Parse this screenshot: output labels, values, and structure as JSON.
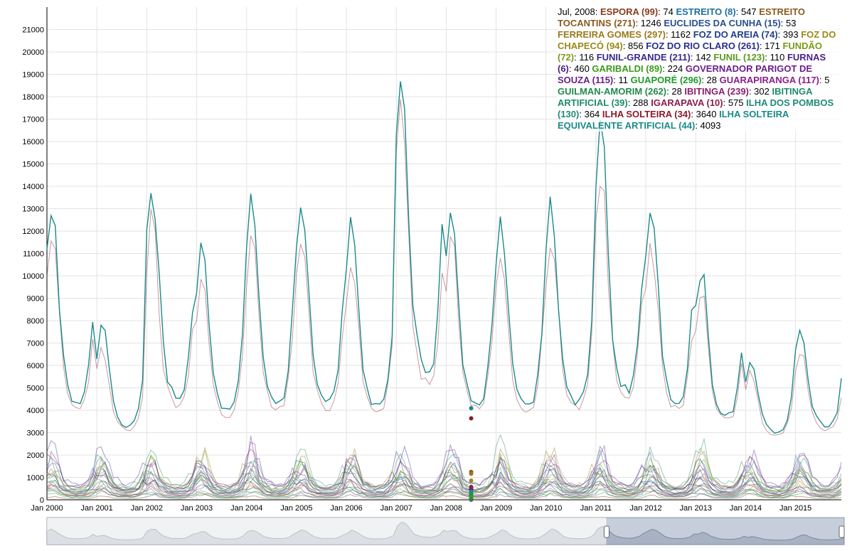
{
  "chart_data": {
    "type": "line",
    "title": "",
    "xlabel": "",
    "ylabel": "",
    "x_start": "2000-01",
    "x_end": "2015-12",
    "x_tick_labels": [
      "Jan 2000",
      "Jan 2001",
      "Jan 2002",
      "Jan 2003",
      "Jan 2004",
      "Jan 2005",
      "Jan 2006",
      "Jan 2007",
      "Jan 2008",
      "Jan 2009",
      "Jan 2010",
      "Jan 2011",
      "Jan 2012",
      "Jan 2013",
      "Jan 2014",
      "Jan 2015"
    ],
    "y_ticks": [
      0,
      1000,
      2000,
      3000,
      4000,
      5000,
      6000,
      7000,
      8000,
      9000,
      10000,
      11000,
      12000,
      13000,
      14000,
      15000,
      16000,
      17000,
      18000,
      19000,
      20000,
      21000
    ],
    "ylim": [
      0,
      22000
    ],
    "grid": true,
    "legend_position": "top-right",
    "highlight_date": "2008-07",
    "legend_header": "Jul, 2008:",
    "series": [
      {
        "name": "ESPORA (99)",
        "value": "74",
        "color": "#8b3a1a"
      },
      {
        "name": "ESTREITO (8)",
        "value": "547",
        "color": "#1f6f9f"
      },
      {
        "name": "ESTREITO TOCANTINS (271)",
        "value": "1246",
        "color": "#8a5a1e"
      },
      {
        "name": "EUCLIDES DA CUNHA (15)",
        "value": "53",
        "color": "#2a4f8f"
      },
      {
        "name": "FERREIRA GOMES (297)",
        "value": "1162",
        "color": "#9a7a1a"
      },
      {
        "name": "FOZ DO AREIA (74)",
        "value": "393",
        "color": "#1f3d8a"
      },
      {
        "name": "FOZ DO CHAPECÓ (94)",
        "value": "856",
        "color": "#9a8a1a"
      },
      {
        "name": "FOZ DO RIO CLARO (261)",
        "value": "171",
        "color": "#2a2f8f"
      },
      {
        "name": "FUNDÃO (72)",
        "value": "116",
        "color": "#7a9a1a"
      },
      {
        "name": "FUNIL-GRANDE (211)",
        "value": "142",
        "color": "#3a2a8a"
      },
      {
        "name": "FUNIL (123)",
        "value": "110",
        "color": "#5a9a1a"
      },
      {
        "name": "FURNAS (6)",
        "value": "460",
        "color": "#4a1f8a"
      },
      {
        "name": "GARIBALDI (89)",
        "value": "224",
        "color": "#3a9a1a"
      },
      {
        "name": "GOVERNADOR PARIGOT DE SOUZA (115)",
        "value": "11",
        "color": "#6a1f8a"
      },
      {
        "name": "GUAPORÉ (296)",
        "value": "28",
        "color": "#1f9a2a"
      },
      {
        "name": "GUARAPIRANGA (117)",
        "value": "5",
        "color": "#8a1f8a"
      },
      {
        "name": "GUILMAN-AMORIM (262)",
        "value": "28",
        "color": "#1f8a4a"
      },
      {
        "name": "IBITINGA (239)",
        "value": "302",
        "color": "#8a1f6a"
      },
      {
        "name": "IBITINGA ARTIFICIAL (39)",
        "value": "288",
        "color": "#1f8a6a"
      },
      {
        "name": "IGARAPAVA (10)",
        "value": "575",
        "color": "#8a1f4a"
      },
      {
        "name": "ILHA DOS POMBOS (130)",
        "value": "364",
        "color": "#1f8a7a"
      },
      {
        "name": "ILHA SOLTEIRA (34)",
        "value": "3640",
        "color": "#8a1a2a"
      },
      {
        "name": "ILHA SOLTEIRA EQUIVALENTE ARTIFICIAL (44)",
        "value": "4093",
        "color": "#1a8a8a"
      }
    ],
    "main_series_peaks": {
      "ILHA SOLTEIRA EQUIVALENTE ARTIFICIAL (44)": [
        13000,
        7700,
        14200,
        11100,
        12900,
        13100,
        12000,
        20000,
        13000,
        12300,
        13200,
        16000,
        13300,
        10300,
        6300,
        7700
      ],
      "ILHA SOLTEIRA (34)": [
        11600,
        6800,
        12300,
        9900,
        11500,
        11600,
        10900,
        17700,
        11800,
        10900,
        11800,
        14500,
        11600,
        9200,
        5700,
        6800
      ]
    }
  }
}
